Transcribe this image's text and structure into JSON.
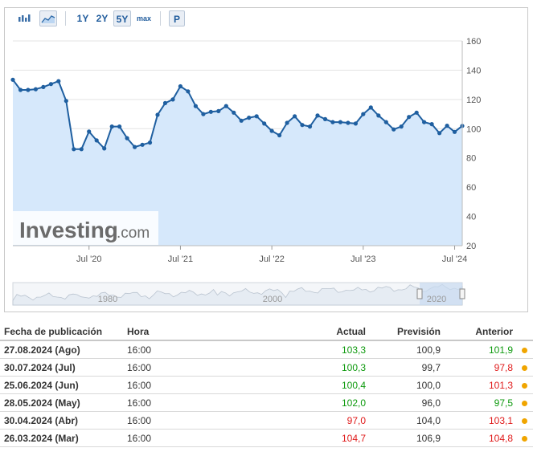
{
  "toolbar": {
    "ranges": [
      "1Y",
      "2Y",
      "5Y",
      "max"
    ],
    "active_range": "5Y",
    "p_label": "P",
    "icons": [
      "bar-chart-icon",
      "area-chart-icon"
    ]
  },
  "watermark": {
    "brand": "Investing",
    "suffix": ".com"
  },
  "navigator": {
    "labels": [
      "1980",
      "2000",
      "2020"
    ]
  },
  "chart_data": {
    "type": "area",
    "x_tick_labels": [
      "Jul '20",
      "Jul '21",
      "Jul '22",
      "Jul '23",
      "Jul '24"
    ],
    "y_ticks": [
      20,
      40,
      60,
      80,
      100,
      120,
      140,
      160
    ],
    "ylim": [
      20,
      160
    ],
    "grid": true,
    "y_axis_position": "right",
    "series": [
      {
        "color": "#1f5fa0",
        "fill": "#d6e8fb",
        "x": [
          "2019-09",
          "2019-10",
          "2019-11",
          "2019-12",
          "2020-01",
          "2020-02",
          "2020-03",
          "2020-04",
          "2020-05",
          "2020-06",
          "2020-07",
          "2020-08",
          "2020-09",
          "2020-10",
          "2020-11",
          "2020-12",
          "2021-01",
          "2021-02",
          "2021-03",
          "2021-04",
          "2021-05",
          "2021-06",
          "2021-07",
          "2021-08",
          "2021-09",
          "2021-10",
          "2021-11",
          "2021-12",
          "2022-01",
          "2022-02",
          "2022-03",
          "2022-04",
          "2022-05",
          "2022-06",
          "2022-07",
          "2022-08",
          "2022-09",
          "2022-10",
          "2022-11",
          "2022-12",
          "2023-01",
          "2023-02",
          "2023-03",
          "2023-04",
          "2023-05",
          "2023-06",
          "2023-07",
          "2023-08",
          "2023-09",
          "2023-10",
          "2023-11",
          "2023-12",
          "2024-01",
          "2024-02",
          "2024-03",
          "2024-04",
          "2024-05",
          "2024-06",
          "2024-07",
          "2024-08"
        ],
        "values": [
          133.5,
          126.5,
          126.5,
          127.0,
          128.5,
          130.5,
          132.5,
          119.0,
          86.0,
          86.0,
          98.0,
          92.0,
          86.5,
          101.5,
          101.5,
          93.5,
          87.5,
          89.0,
          90.5,
          109.5,
          117.5,
          120.0,
          129.0,
          125.5,
          115.5,
          110.0,
          111.5,
          112.0,
          115.5,
          111.0,
          105.5,
          107.5,
          108.5,
          103.5,
          98.5,
          95.5,
          104.0,
          108.5,
          102.5,
          101.5,
          109.0,
          106.5,
          104.5,
          104.5,
          104.0,
          103.5,
          110.0,
          114.5,
          109.0,
          104.5,
          99.5,
          101.5,
          108.0,
          111.0,
          104.5,
          103.1,
          97.0,
          102.0,
          97.8,
          101.9
        ]
      }
    ]
  },
  "table": {
    "headers": {
      "date": "Fecha de publicación",
      "time": "Hora",
      "actual": "Actual",
      "forecast": "Previsión",
      "previous": "Anterior"
    },
    "rows": [
      {
        "date": "27.08.2024 (Ago)",
        "time": "16:00",
        "actual": "103,3",
        "forecast": "100,9",
        "previous": "101,9",
        "actual_trend": "up",
        "previous_trend": "up"
      },
      {
        "date": "30.07.2024 (Jul)",
        "time": "16:00",
        "actual": "100,3",
        "forecast": "99,7",
        "previous": "97,8",
        "actual_trend": "up",
        "previous_trend": "down"
      },
      {
        "date": "25.06.2024 (Jun)",
        "time": "16:00",
        "actual": "100,4",
        "forecast": "100,0",
        "previous": "101,3",
        "actual_trend": "up",
        "previous_trend": "down"
      },
      {
        "date": "28.05.2024 (May)",
        "time": "16:00",
        "actual": "102,0",
        "forecast": "96,0",
        "previous": "97,5",
        "actual_trend": "up",
        "previous_trend": "up"
      },
      {
        "date": "30.04.2024 (Abr)",
        "time": "16:00",
        "actual": "97,0",
        "forecast": "104,0",
        "previous": "103,1",
        "actual_trend": "down",
        "previous_trend": "down"
      },
      {
        "date": "26.03.2024 (Mar)",
        "time": "16:00",
        "actual": "104,7",
        "forecast": "106,9",
        "previous": "104,8",
        "actual_trend": "down",
        "previous_trend": "down"
      }
    ]
  },
  "colors": {
    "up": "#0e9a0e",
    "down": "#e01b1b",
    "line": "#1f5fa0",
    "area": "#d6e8fb",
    "dot": "#f0a500"
  }
}
